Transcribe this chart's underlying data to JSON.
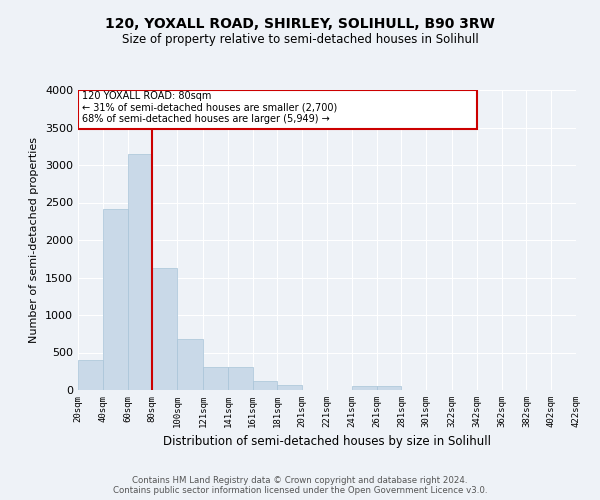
{
  "title": "120, YOXALL ROAD, SHIRLEY, SOLIHULL, B90 3RW",
  "subtitle": "Size of property relative to semi-detached houses in Solihull",
  "xlabel": "Distribution of semi-detached houses by size in Solihull",
  "ylabel": "Number of semi-detached properties",
  "bar_color": "#c9d9e8",
  "bar_edge_color": "#a8c4d8",
  "property_value": 80,
  "property_label": "120 YOXALL ROAD: 80sqm",
  "pct_smaller": 31,
  "count_smaller": 2700,
  "pct_larger": 68,
  "count_larger": 5949,
  "annotation_line_color": "#cc0000",
  "annotation_box_color": "#cc0000",
  "bg_color": "#eef2f7",
  "grid_color": "#ffffff",
  "footer_line1": "Contains HM Land Registry data © Crown copyright and database right 2024.",
  "footer_line2": "Contains public sector information licensed under the Open Government Licence v3.0.",
  "bin_edges": [
    20,
    40,
    60,
    80,
    100,
    121,
    141,
    161,
    181,
    201,
    221,
    241,
    261,
    281,
    301,
    322,
    342,
    362,
    382,
    402,
    422
  ],
  "bin_labels": [
    "20sqm",
    "40sqm",
    "60sqm",
    "80sqm",
    "100sqm",
    "121sqm",
    "141sqm",
    "161sqm",
    "181sqm",
    "201sqm",
    "221sqm",
    "241sqm",
    "261sqm",
    "281sqm",
    "301sqm",
    "322sqm",
    "342sqm",
    "362sqm",
    "382sqm",
    "402sqm",
    "422sqm"
  ],
  "bar_heights": [
    400,
    2420,
    3150,
    1630,
    680,
    305,
    305,
    120,
    65,
    0,
    0,
    50,
    50,
    0,
    0,
    0,
    0,
    0,
    0,
    0
  ],
  "ylim": [
    0,
    4000
  ],
  "yticks": [
    0,
    500,
    1000,
    1500,
    2000,
    2500,
    3000,
    3500,
    4000
  ]
}
